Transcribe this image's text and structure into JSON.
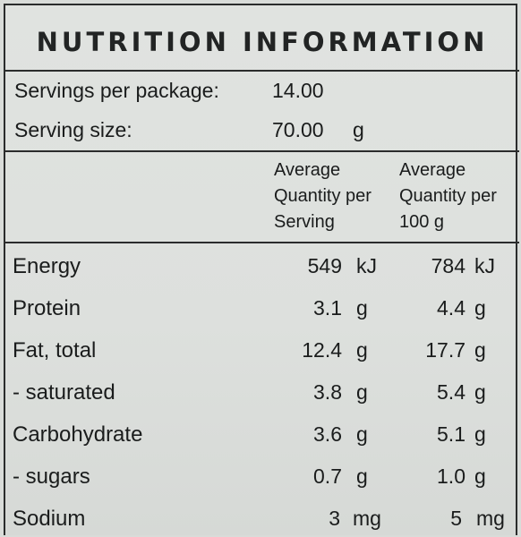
{
  "title": "NUTRITION INFORMATION",
  "servings": {
    "label": "Servings per package:",
    "value": "14.00"
  },
  "serving_size": {
    "label": "Serving size:",
    "value": "70.00",
    "unit": "g"
  },
  "columns": {
    "per_serving": [
      "Average",
      "Quantity per",
      "Serving"
    ],
    "per_100g": [
      "Average",
      "Quantity per",
      "100 g"
    ]
  },
  "rows": [
    {
      "label": "Energy",
      "serving": "549",
      "serving_unit": "kJ",
      "per100": "784",
      "per100_unit": "kJ"
    },
    {
      "label": "Protein",
      "serving": "3.1",
      "serving_unit": "g",
      "per100": "4.4",
      "per100_unit": "g"
    },
    {
      "label": "Fat, total",
      "serving": "12.4",
      "serving_unit": "g",
      "per100": "17.7",
      "per100_unit": "g"
    },
    {
      "label": "- saturated",
      "serving": "3.8",
      "serving_unit": "g",
      "per100": "5.4",
      "per100_unit": "g"
    },
    {
      "label": "Carbohydrate",
      "serving": "3.6",
      "serving_unit": "g",
      "per100": "5.1",
      "per100_unit": "g"
    },
    {
      "label": "- sugars",
      "serving": "0.7",
      "serving_unit": "g",
      "per100": "1.0",
      "per100_unit": "g"
    },
    {
      "label": "Sodium",
      "serving": "3",
      "serving_unit": "mg",
      "per100": "5",
      "per100_unit": "mg"
    }
  ]
}
